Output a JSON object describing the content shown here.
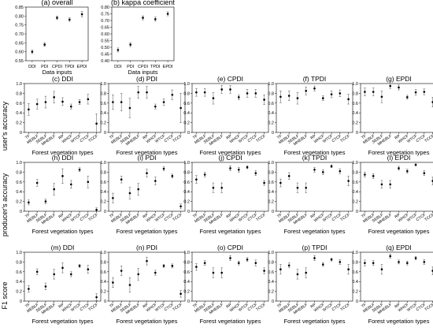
{
  "figure": {
    "shared_labels": {
      "data_inputs": "Data inputs",
      "forest_types": "Forest vegetation types",
      "users_accuracy": "user's accuracy",
      "producers_accuracy": "producer's accuracy",
      "f1_score": "F1 score"
    }
  },
  "chart_data": [
    {
      "id": "a",
      "type": "scatter",
      "title": "(a) overall",
      "xlabel": "Data inputs",
      "ylabel": "",
      "categories": [
        "DDI",
        "PDI",
        "CPDI",
        "TPDI",
        "EPDI"
      ],
      "ylim": [
        0.55,
        0.85
      ],
      "yticks": [
        0.55,
        0.6,
        0.65,
        0.7,
        0.75,
        0.8,
        0.85
      ],
      "values": [
        0.6,
        0.64,
        0.79,
        0.78,
        0.81
      ],
      "err": [
        0.01,
        0.01,
        0.01,
        0.01,
        0.015
      ]
    },
    {
      "id": "b",
      "type": "scatter",
      "title": "(b) kappa coefficient",
      "xlabel": "Data inputs",
      "ylabel": "",
      "categories": [
        "DDI",
        "PDI",
        "CPDI",
        "TPDI",
        "EPDI"
      ],
      "ylim": [
        0.4,
        0.8
      ],
      "yticks": [
        0.4,
        0.45,
        0.5,
        0.55,
        0.6,
        0.65,
        0.7,
        0.75,
        0.8
      ],
      "values": [
        0.48,
        0.52,
        0.72,
        0.71,
        0.75
      ],
      "err": [
        0.015,
        0.015,
        0.015,
        0.015,
        0.015
      ]
    },
    {
      "id": "c",
      "type": "scatter",
      "title": "(c) DDI",
      "xlabel": "Forest vegetation types",
      "ylabel": "user's accuracy",
      "categories": [
        "TF",
        "MEBLF",
        "SEBLF",
        "MHEBLF",
        "RP",
        "WHCF",
        "WTCF",
        "CTCF",
        "TCCF"
      ],
      "ylim": [
        0,
        1
      ],
      "yticks": [
        0,
        0.2,
        0.4,
        0.6,
        0.8,
        1.0
      ],
      "values": [
        0.47,
        0.58,
        0.62,
        0.72,
        0.63,
        0.53,
        0.62,
        0.68,
        0.18
      ],
      "err": [
        0.12,
        0.1,
        0.12,
        0.12,
        0.08,
        0.05,
        0.05,
        0.1,
        0.2
      ]
    },
    {
      "id": "d",
      "type": "scatter",
      "title": "(d) PDI",
      "xlabel": "Forest vegetation types",
      "ylabel": "",
      "categories": [
        "TF",
        "MEBLF",
        "SEBLF",
        "MHEBLF",
        "RP",
        "WHCF",
        "WTCF",
        "CTCF",
        "TCCF"
      ],
      "ylim": [
        0,
        1
      ],
      "yticks": [
        0,
        0.2,
        0.4,
        0.6,
        0.8,
        1.0
      ],
      "values": [
        0.62,
        0.62,
        0.5,
        0.82,
        0.82,
        0.53,
        0.62,
        0.77,
        0.5
      ],
      "err": [
        0.15,
        0.18,
        0.2,
        0.12,
        0.12,
        0.05,
        0.07,
        0.1,
        0.3
      ]
    },
    {
      "id": "e",
      "type": "scatter",
      "title": "(e) CPDI",
      "xlabel": "Forest vegetation types",
      "ylabel": "",
      "categories": [
        "TF",
        "MEBLF",
        "SEBLF",
        "MHEBLF",
        "RP",
        "WHCF",
        "WTCF",
        "CTCF",
        "TCCF"
      ],
      "ylim": [
        0,
        1
      ],
      "yticks": [
        0,
        0.2,
        0.4,
        0.6,
        0.8,
        1.0
      ],
      "values": [
        0.82,
        0.82,
        0.7,
        0.88,
        0.88,
        0.72,
        0.8,
        0.8,
        0.67
      ],
      "err": [
        0.08,
        0.08,
        0.12,
        0.08,
        0.08,
        0.05,
        0.08,
        0.08,
        0.1
      ]
    },
    {
      "id": "f",
      "type": "scatter",
      "title": "(f) TPDI",
      "xlabel": "Forest vegetation types",
      "ylabel": "",
      "categories": [
        "TF",
        "MEBLF",
        "SEBLF",
        "MHEBLF",
        "RP",
        "WHCF",
        "WTCF",
        "CTCF",
        "TCCF"
      ],
      "ylim": [
        0,
        1
      ],
      "yticks": [
        0,
        0.2,
        0.4,
        0.6,
        0.8,
        1.0
      ],
      "values": [
        0.73,
        0.75,
        0.7,
        0.85,
        0.9,
        0.7,
        0.78,
        0.8,
        0.68
      ],
      "err": [
        0.12,
        0.1,
        0.12,
        0.08,
        0.05,
        0.05,
        0.07,
        0.07,
        0.1
      ]
    },
    {
      "id": "g",
      "type": "scatter",
      "title": "(g) EPDI",
      "xlabel": "Forest vegetation types",
      "ylabel": "",
      "categories": [
        "TF",
        "MEBLF",
        "SEBLF",
        "MHEBLF",
        "RP",
        "WHCF",
        "WTCF",
        "CTCF",
        "TCCF"
      ],
      "ylim": [
        0,
        1
      ],
      "yticks": [
        0,
        0.2,
        0.4,
        0.6,
        0.8,
        1.0
      ],
      "values": [
        0.83,
        0.83,
        0.73,
        0.95,
        0.92,
        0.72,
        0.82,
        0.83,
        0.62
      ],
      "err": [
        0.08,
        0.08,
        0.12,
        0.05,
        0.05,
        0.04,
        0.06,
        0.06,
        0.1
      ]
    },
    {
      "id": "h",
      "type": "scatter",
      "title": "(h) DDI",
      "xlabel": "Forest vegetation types",
      "ylabel": "producer's accuracy",
      "categories": [
        "TF",
        "MEBLF",
        "SEBLF",
        "MHEBLF",
        "RP",
        "WHCF",
        "WTCF",
        "CTCF",
        "TCCF"
      ],
      "ylim": [
        0,
        1
      ],
      "yticks": [
        0,
        0.2,
        0.4,
        0.6,
        0.8,
        1.0
      ],
      "values": [
        0.18,
        0.58,
        0.2,
        0.45,
        0.72,
        0.55,
        0.85,
        0.6,
        0.03
      ],
      "err": [
        0.05,
        0.07,
        0.05,
        0.12,
        0.15,
        0.08,
        0.04,
        0.12,
        0.04
      ]
    },
    {
      "id": "i",
      "type": "scatter",
      "title": "(i) PDI",
      "xlabel": "Forest vegetation types",
      "ylabel": "",
      "categories": [
        "TF",
        "MEBLF",
        "SEBLF",
        "MHEBLF",
        "RP",
        "WHCF",
        "WTCF",
        "CTCF",
        "TCCF"
      ],
      "ylim": [
        0,
        1
      ],
      "yticks": [
        0,
        0.2,
        0.4,
        0.6,
        0.8,
        1.0
      ],
      "values": [
        0.27,
        0.65,
        0.37,
        0.45,
        0.78,
        0.62,
        0.87,
        0.72,
        0.1
      ],
      "err": [
        0.1,
        0.07,
        0.12,
        0.12,
        0.08,
        0.08,
        0.04,
        0.04,
        0.05
      ]
    },
    {
      "id": "j",
      "type": "scatter",
      "title": "(j) CPDI",
      "xlabel": "Forest vegetation types",
      "ylabel": "",
      "categories": [
        "TF",
        "MEBLF",
        "SEBLF",
        "MHEBLF",
        "RP",
        "WHCF",
        "WTCF",
        "CTCF",
        "TCCF"
      ],
      "ylim": [
        0,
        1
      ],
      "yticks": [
        0,
        0.2,
        0.4,
        0.6,
        0.8,
        1.0
      ],
      "values": [
        0.65,
        0.75,
        0.48,
        0.48,
        0.88,
        0.85,
        0.9,
        0.78,
        0.58
      ],
      "err": [
        0.08,
        0.05,
        0.1,
        0.1,
        0.05,
        0.05,
        0.03,
        0.05,
        0.05
      ]
    },
    {
      "id": "k",
      "type": "scatter",
      "title": "(k) TPDI",
      "xlabel": "Forest vegetation types",
      "ylabel": "",
      "categories": [
        "TF",
        "MEBLF",
        "SEBLF",
        "MHEBLF",
        "RP",
        "WHCF",
        "WTCF",
        "CTCF",
        "TCCF"
      ],
      "ylim": [
        0,
        1
      ],
      "yticks": [
        0,
        0.2,
        0.4,
        0.6,
        0.8,
        1.0
      ],
      "values": [
        0.58,
        0.72,
        0.48,
        0.48,
        0.85,
        0.8,
        0.92,
        0.82,
        0.62
      ],
      "err": [
        0.08,
        0.07,
        0.1,
        0.1,
        0.05,
        0.05,
        0.03,
        0.05,
        0.1
      ]
    },
    {
      "id": "l",
      "type": "scatter",
      "title": "(l) EPDI",
      "xlabel": "Forest vegetation types",
      "ylabel": "",
      "categories": [
        "TF",
        "MEBLF",
        "SEBLF",
        "MHEBLF",
        "RP",
        "WHCF",
        "WTCF",
        "CTCF",
        "TCCF"
      ],
      "ylim": [
        0,
        1
      ],
      "yticks": [
        0,
        0.2,
        0.4,
        0.6,
        0.8,
        1.0
      ],
      "values": [
        0.75,
        0.72,
        0.55,
        0.55,
        0.88,
        0.82,
        0.95,
        0.78,
        0.62
      ],
      "err": [
        0.05,
        0.05,
        0.08,
        0.08,
        0.04,
        0.04,
        0.02,
        0.05,
        0.08
      ]
    },
    {
      "id": "m",
      "type": "scatter",
      "title": "(m) DDI",
      "xlabel": "Forest vegetation types",
      "ylabel": "F1 score",
      "categories": [
        "TF",
        "MEBLF",
        "SEBLF",
        "MHEBLF",
        "RP",
        "WHCF",
        "WTCF",
        "CTCF",
        "TCCF"
      ],
      "ylim": [
        0,
        1
      ],
      "yticks": [
        0,
        0.2,
        0.4,
        0.6,
        0.8,
        1.0
      ],
      "values": [
        0.25,
        0.6,
        0.3,
        0.55,
        0.68,
        0.55,
        0.72,
        0.65,
        0.08
      ],
      "err": [
        0.07,
        0.06,
        0.07,
        0.1,
        0.1,
        0.05,
        0.03,
        0.08,
        0.07
      ]
    },
    {
      "id": "n",
      "type": "scatter",
      "title": "(n) PDI",
      "xlabel": "Forest vegetation types",
      "ylabel": "",
      "categories": [
        "TF",
        "MEBLF",
        "SEBLF",
        "MHEBLF",
        "RP",
        "WHCF",
        "WTCF",
        "CTCF",
        "TCCF"
      ],
      "ylim": [
        0,
        1
      ],
      "yticks": [
        0,
        0.2,
        0.4,
        0.6,
        0.8,
        1.0
      ],
      "values": [
        0.38,
        0.62,
        0.33,
        0.55,
        0.82,
        0.58,
        0.72,
        0.72,
        0.15
      ],
      "err": [
        0.1,
        0.1,
        0.15,
        0.12,
        0.08,
        0.05,
        0.03,
        0.04,
        0.07
      ]
    },
    {
      "id": "o",
      "type": "scatter",
      "title": "(o) CPDI",
      "xlabel": "Forest vegetation types",
      "ylabel": "",
      "categories": [
        "TF",
        "MEBLF",
        "SEBLF",
        "MHEBLF",
        "RP",
        "WHCF",
        "WTCF",
        "CTCF",
        "TCCF"
      ],
      "ylim": [
        0,
        1
      ],
      "yticks": [
        0,
        0.2,
        0.4,
        0.6,
        0.8,
        1.0
      ],
      "values": [
        0.7,
        0.78,
        0.58,
        0.58,
        0.88,
        0.78,
        0.85,
        0.78,
        0.62
      ],
      "err": [
        0.07,
        0.05,
        0.1,
        0.1,
        0.05,
        0.04,
        0.04,
        0.06,
        0.06
      ]
    },
    {
      "id": "p",
      "type": "scatter",
      "title": "(p) TPDI",
      "xlabel": "Forest vegetation types",
      "ylabel": "",
      "categories": [
        "TF",
        "MEBLF",
        "SEBLF",
        "MHEBLF",
        "RP",
        "WHCF",
        "WTCF",
        "CTCF",
        "TCCF"
      ],
      "ylim": [
        0,
        1
      ],
      "yticks": [
        0,
        0.2,
        0.4,
        0.6,
        0.8,
        1.0
      ],
      "values": [
        0.65,
        0.73,
        0.55,
        0.58,
        0.88,
        0.75,
        0.85,
        0.8,
        0.65
      ],
      "err": [
        0.1,
        0.05,
        0.1,
        0.1,
        0.05,
        0.04,
        0.03,
        0.05,
        0.1
      ]
    },
    {
      "id": "q",
      "type": "scatter",
      "title": "(q) EPDI",
      "xlabel": "Forest vegetation types",
      "ylabel": "",
      "categories": [
        "TF",
        "MEBLF",
        "SEBLF",
        "MHEBLF",
        "RP",
        "WHCF",
        "WTCF",
        "CTCF",
        "TCCF"
      ],
      "ylim": [
        0,
        1
      ],
      "yticks": [
        0,
        0.2,
        0.4,
        0.6,
        0.8,
        1.0
      ],
      "values": [
        0.78,
        0.78,
        0.65,
        0.92,
        0.8,
        0.78,
        0.88,
        0.8,
        0.62
      ],
      "err": [
        0.06,
        0.05,
        0.1,
        0.04,
        0.04,
        0.04,
        0.03,
        0.05,
        0.08
      ]
    }
  ]
}
